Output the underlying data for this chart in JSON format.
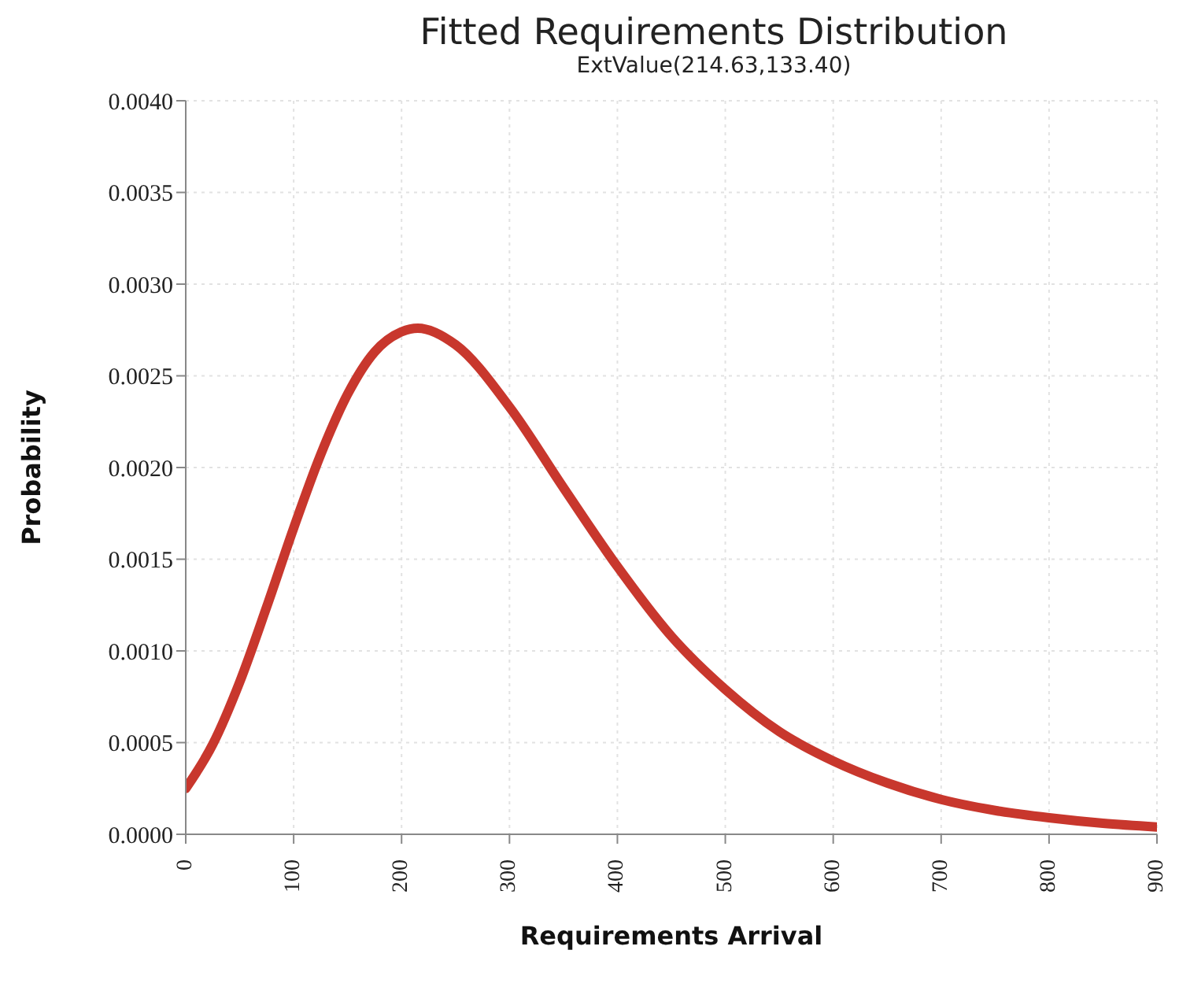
{
  "chart_data": {
    "type": "line",
    "title": "Fitted Requirements Distribution",
    "subtitle": "ExtValue(214.63,133.40)",
    "xlabel": "Requirements Arrival",
    "ylabel": "Probability",
    "x": [
      0,
      25,
      50,
      75,
      100,
      125,
      150,
      175,
      200,
      215,
      250,
      300,
      350,
      400,
      450,
      500,
      550,
      600,
      650,
      700,
      750,
      800,
      850,
      900
    ],
    "series": [
      {
        "color": "#c8372d",
        "values": [
          0.00025,
          0.00049,
          0.00083,
          0.00124,
          0.00167,
          0.00207,
          0.0024,
          0.00263,
          0.00274,
          0.00276,
          0.00267,
          0.00233,
          0.00189,
          0.00146,
          0.00108,
          0.00079,
          0.00056,
          0.0004,
          0.00028,
          0.00019,
          0.00013,
          9e-05,
          6e-05,
          4e-05
        ]
      }
    ],
    "xlim": [
      0,
      900
    ],
    "xticks": [
      0,
      100,
      200,
      300,
      400,
      500,
      600,
      700,
      800,
      900
    ],
    "ylim": [
      0,
      0.004
    ],
    "yticks": [
      {
        "value": 0,
        "label": "0.0000"
      },
      {
        "value": 0.0005,
        "label": "0.0005"
      },
      {
        "value": 0.001,
        "label": "0.0010"
      },
      {
        "value": 0.0015,
        "label": "0.0015"
      },
      {
        "value": 0.002,
        "label": "0.0020"
      },
      {
        "value": 0.0025,
        "label": "0.0025"
      },
      {
        "value": 0.003,
        "label": "0.0030"
      },
      {
        "value": 0.0035,
        "label": "0.0035"
      },
      {
        "value": 0.004,
        "label": "0.0040"
      }
    ],
    "grid": true,
    "legend": false,
    "marker": "none",
    "line_style": "solid"
  }
}
